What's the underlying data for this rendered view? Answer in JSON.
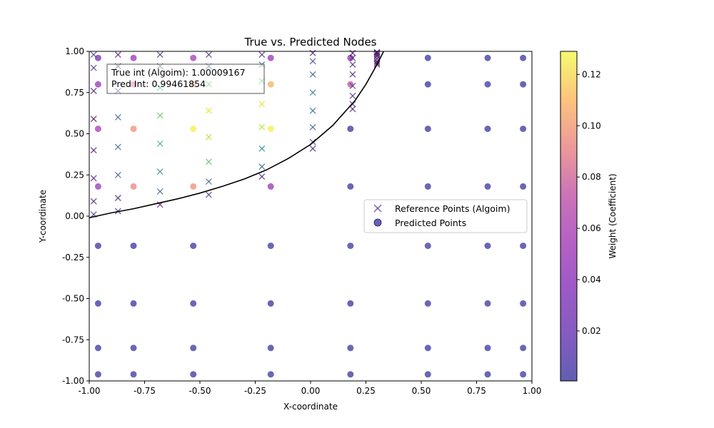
{
  "chart_data": {
    "type": "scatter",
    "title": "True vs. Predicted Nodes",
    "xlabel": "X-coordinate",
    "ylabel": "Y-coordinate",
    "xlim": [
      -1.0,
      1.0
    ],
    "ylim": [
      -1.0,
      1.0
    ],
    "x_ticks": [
      "-1.00",
      "-0.75",
      "-0.50",
      "-0.25",
      "0.00",
      "0.25",
      "0.50",
      "0.75",
      "1.00"
    ],
    "y_ticks": [
      "-1.00",
      "-0.75",
      "-0.50",
      "-0.25",
      "0.00",
      "0.25",
      "0.50",
      "0.75",
      "1.00"
    ],
    "grid": false,
    "legend_position": "center-right",
    "legend": {
      "reference_label": "Reference Points (Algoim)",
      "predicted_label": "Predicted Points"
    },
    "annotation": {
      "line1": "True int (Algoim): 1.00009167",
      "line2": "Pred Int: 0.99461854"
    },
    "colorbar": {
      "label": "Weight (Coefficient)",
      "colormap": "plasma",
      "range": [
        0.0005,
        0.129
      ],
      "ticks": [
        "0.02",
        "0.04",
        "0.06",
        "0.08",
        "0.10",
        "0.12"
      ],
      "tick_values": [
        0.02,
        0.04,
        0.06,
        0.08,
        0.1,
        0.12
      ]
    },
    "curve": {
      "color": "#000000",
      "points": [
        [
          -1.0,
          -0.01
        ],
        [
          -0.9,
          0.02
        ],
        [
          -0.8,
          0.045
        ],
        [
          -0.7,
          0.075
        ],
        [
          -0.6,
          0.105
        ],
        [
          -0.5,
          0.14
        ],
        [
          -0.4,
          0.18
        ],
        [
          -0.3,
          0.225
        ],
        [
          -0.2,
          0.28
        ],
        [
          -0.1,
          0.35
        ],
        [
          0.0,
          0.435
        ],
        [
          0.1,
          0.55
        ],
        [
          0.2,
          0.7
        ],
        [
          0.25,
          0.8
        ],
        [
          0.3,
          0.92
        ],
        [
          0.33,
          1.0
        ]
      ]
    },
    "predicted_points": {
      "x_nodes": [
        -0.96,
        -0.8,
        -0.53,
        -0.18,
        0.18,
        0.53,
        0.8,
        0.96
      ],
      "y_nodes": [
        -0.96,
        -0.8,
        -0.53,
        -0.18,
        0.18,
        0.53,
        0.8,
        0.96
      ],
      "outside_weight": 0.001,
      "inside": [
        {
          "x": -0.96,
          "y": 0.18,
          "w": 0.035
        },
        {
          "x": -0.96,
          "y": 0.53,
          "w": 0.04
        },
        {
          "x": -0.96,
          "y": 0.8,
          "w": 0.035
        },
        {
          "x": -0.96,
          "y": 0.96,
          "w": 0.02
        },
        {
          "x": -0.8,
          "y": 0.18,
          "w": 0.08
        },
        {
          "x": -0.8,
          "y": 0.53,
          "w": 0.085
        },
        {
          "x": -0.8,
          "y": 0.8,
          "w": 0.06
        },
        {
          "x": -0.8,
          "y": 0.96,
          "w": 0.035
        },
        {
          "x": -0.53,
          "y": 0.18,
          "w": 0.085
        },
        {
          "x": -0.53,
          "y": 0.53,
          "w": 0.125
        },
        {
          "x": -0.53,
          "y": 0.8,
          "w": 0.09
        },
        {
          "x": -0.53,
          "y": 0.96,
          "w": 0.04
        },
        {
          "x": -0.18,
          "y": 0.18,
          "w": 0.035
        },
        {
          "x": -0.18,
          "y": 0.53,
          "w": 0.125
        },
        {
          "x": -0.18,
          "y": 0.8,
          "w": 0.1
        },
        {
          "x": -0.18,
          "y": 0.96,
          "w": 0.035
        },
        {
          "x": 0.18,
          "y": 0.8,
          "w": 0.055
        },
        {
          "x": 0.18,
          "y": 0.96,
          "w": 0.03
        }
      ]
    },
    "reference_points": [
      {
        "x": -0.98,
        "y": 0.01,
        "w": 0.02
      },
      {
        "x": -0.98,
        "y": 0.09,
        "w": 0.015
      },
      {
        "x": -0.98,
        "y": 0.23,
        "w": 0.01
      },
      {
        "x": -0.98,
        "y": 0.4,
        "w": 0.008
      },
      {
        "x": -0.98,
        "y": 0.59,
        "w": 0.008
      },
      {
        "x": -0.98,
        "y": 0.76,
        "w": 0.01
      },
      {
        "x": -0.98,
        "y": 0.9,
        "w": 0.015
      },
      {
        "x": -0.98,
        "y": 0.98,
        "w": 0.02
      },
      {
        "x": -0.87,
        "y": 0.03,
        "w": 0.015
      },
      {
        "x": -0.87,
        "y": 0.11,
        "w": 0.012
      },
      {
        "x": -0.87,
        "y": 0.25,
        "w": 0.035
      },
      {
        "x": -0.87,
        "y": 0.42,
        "w": 0.04
      },
      {
        "x": -0.87,
        "y": 0.6,
        "w": 0.035
      },
      {
        "x": -0.87,
        "y": 0.76,
        "w": 0.03
      },
      {
        "x": -0.87,
        "y": 0.91,
        "w": 0.02
      },
      {
        "x": -0.87,
        "y": 0.98,
        "w": 0.01
      },
      {
        "x": -0.68,
        "y": 0.07,
        "w": 0.015
      },
      {
        "x": -0.68,
        "y": 0.15,
        "w": 0.04
      },
      {
        "x": -0.68,
        "y": 0.27,
        "w": 0.06
      },
      {
        "x": -0.68,
        "y": 0.44,
        "w": 0.08
      },
      {
        "x": -0.68,
        "y": 0.61,
        "w": 0.095
      },
      {
        "x": -0.68,
        "y": 0.78,
        "w": 0.07
      },
      {
        "x": -0.68,
        "y": 0.91,
        "w": 0.04
      },
      {
        "x": -0.68,
        "y": 0.98,
        "w": 0.015
      },
      {
        "x": -0.46,
        "y": 0.13,
        "w": 0.015
      },
      {
        "x": -0.46,
        "y": 0.21,
        "w": 0.04
      },
      {
        "x": -0.46,
        "y": 0.33,
        "w": 0.09
      },
      {
        "x": -0.46,
        "y": 0.48,
        "w": 0.11
      },
      {
        "x": -0.46,
        "y": 0.64,
        "w": 0.12
      },
      {
        "x": -0.46,
        "y": 0.8,
        "w": 0.09
      },
      {
        "x": -0.46,
        "y": 0.91,
        "w": 0.04
      },
      {
        "x": -0.46,
        "y": 0.98,
        "w": 0.015
      },
      {
        "x": -0.22,
        "y": 0.24,
        "w": 0.015
      },
      {
        "x": -0.22,
        "y": 0.3,
        "w": 0.04
      },
      {
        "x": -0.22,
        "y": 0.41,
        "w": 0.06
      },
      {
        "x": -0.22,
        "y": 0.54,
        "w": 0.11
      },
      {
        "x": -0.22,
        "y": 0.68,
        "w": 0.12
      },
      {
        "x": -0.22,
        "y": 0.82,
        "w": 0.09
      },
      {
        "x": -0.22,
        "y": 0.92,
        "w": 0.04
      },
      {
        "x": -0.22,
        "y": 0.98,
        "w": 0.015
      },
      {
        "x": 0.01,
        "y": 0.41,
        "w": 0.015
      },
      {
        "x": 0.01,
        "y": 0.45,
        "w": 0.02
      },
      {
        "x": 0.01,
        "y": 0.54,
        "w": 0.035
      },
      {
        "x": 0.01,
        "y": 0.64,
        "w": 0.045
      },
      {
        "x": 0.01,
        "y": 0.75,
        "w": 0.05
      },
      {
        "x": 0.01,
        "y": 0.86,
        "w": 0.04
      },
      {
        "x": 0.01,
        "y": 0.94,
        "w": 0.025
      },
      {
        "x": 0.01,
        "y": 0.99,
        "w": 0.012
      },
      {
        "x": 0.19,
        "y": 0.65,
        "w": 0.01
      },
      {
        "x": 0.19,
        "y": 0.68,
        "w": 0.012
      },
      {
        "x": 0.19,
        "y": 0.73,
        "w": 0.015
      },
      {
        "x": 0.19,
        "y": 0.79,
        "w": 0.018
      },
      {
        "x": 0.19,
        "y": 0.86,
        "w": 0.015
      },
      {
        "x": 0.19,
        "y": 0.92,
        "w": 0.012
      },
      {
        "x": 0.19,
        "y": 0.96,
        "w": 0.01
      },
      {
        "x": 0.19,
        "y": 0.99,
        "w": 0.008
      },
      {
        "x": 0.3,
        "y": 0.92,
        "w": 0.003
      },
      {
        "x": 0.3,
        "y": 0.93,
        "w": 0.004
      },
      {
        "x": 0.3,
        "y": 0.94,
        "w": 0.005
      },
      {
        "x": 0.3,
        "y": 0.955,
        "w": 0.005
      },
      {
        "x": 0.3,
        "y": 0.97,
        "w": 0.005
      },
      {
        "x": 0.3,
        "y": 0.98,
        "w": 0.004
      },
      {
        "x": 0.3,
        "y": 0.99,
        "w": 0.003
      },
      {
        "x": 0.3,
        "y": 0.995,
        "w": 0.002
      }
    ]
  }
}
